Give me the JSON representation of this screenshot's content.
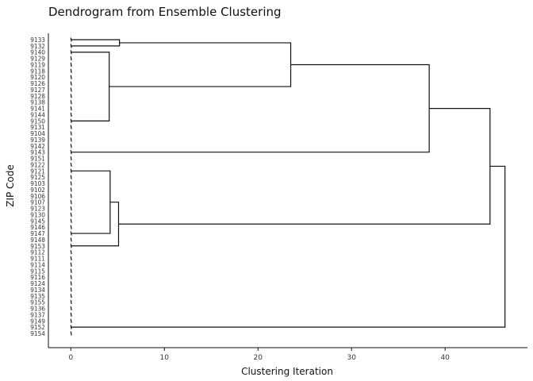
{
  "chart_data": {
    "type": "dendrogram",
    "title": "Dendrogram from Ensemble Clustering",
    "xlabel": "Clustering Iteration",
    "ylabel": "ZIP Code",
    "xlim": [
      -2.4,
      48.8
    ],
    "xticks": [
      0,
      10,
      20,
      30,
      40
    ],
    "grid": false,
    "leaves": [
      "9133",
      "9132",
      "9140",
      "9129",
      "9119",
      "9118",
      "9120",
      "9126",
      "9127",
      "9128",
      "9138",
      "9141",
      "9144",
      "9150",
      "9131",
      "9104",
      "9139",
      "9142",
      "9143",
      "9151",
      "9122",
      "9121",
      "9125",
      "9103",
      "9102",
      "9106",
      "9107",
      "9123",
      "9130",
      "9145",
      "9146",
      "9147",
      "9148",
      "9153",
      "9112",
      "9111",
      "9114",
      "9115",
      "9116",
      "9124",
      "9134",
      "9135",
      "9155",
      "9136",
      "9137",
      "9149",
      "9152",
      "9154"
    ],
    "merges": [
      {
        "id": "A",
        "children": [
          {
            "leaf": 0
          },
          {
            "leaf": 1
          }
        ],
        "height": 5.2
      },
      {
        "id": "B",
        "children": [
          {
            "leaf": 2
          },
          {
            "leaf": 13
          }
        ],
        "height": 4.1
      },
      {
        "id": "C",
        "children": [
          {
            "node": "A"
          },
          {
            "node": "B"
          }
        ],
        "height": 23.5
      },
      {
        "id": "D",
        "children": [
          {
            "node": "C"
          },
          {
            "leaf": 18
          }
        ],
        "height": 38.3
      },
      {
        "id": "E",
        "children": [
          {
            "leaf": 21
          },
          {
            "leaf": 31
          }
        ],
        "height": 4.2
      },
      {
        "id": "F",
        "children": [
          {
            "node": "E"
          },
          {
            "leaf": 33
          }
        ],
        "height": 5.1
      },
      {
        "id": "G",
        "children": [
          {
            "node": "D"
          },
          {
            "node": "F"
          }
        ],
        "height": 44.8
      },
      {
        "id": "H",
        "children": [
          {
            "node": "G"
          },
          {
            "leaf": 46
          }
        ],
        "height": 46.4
      }
    ]
  }
}
